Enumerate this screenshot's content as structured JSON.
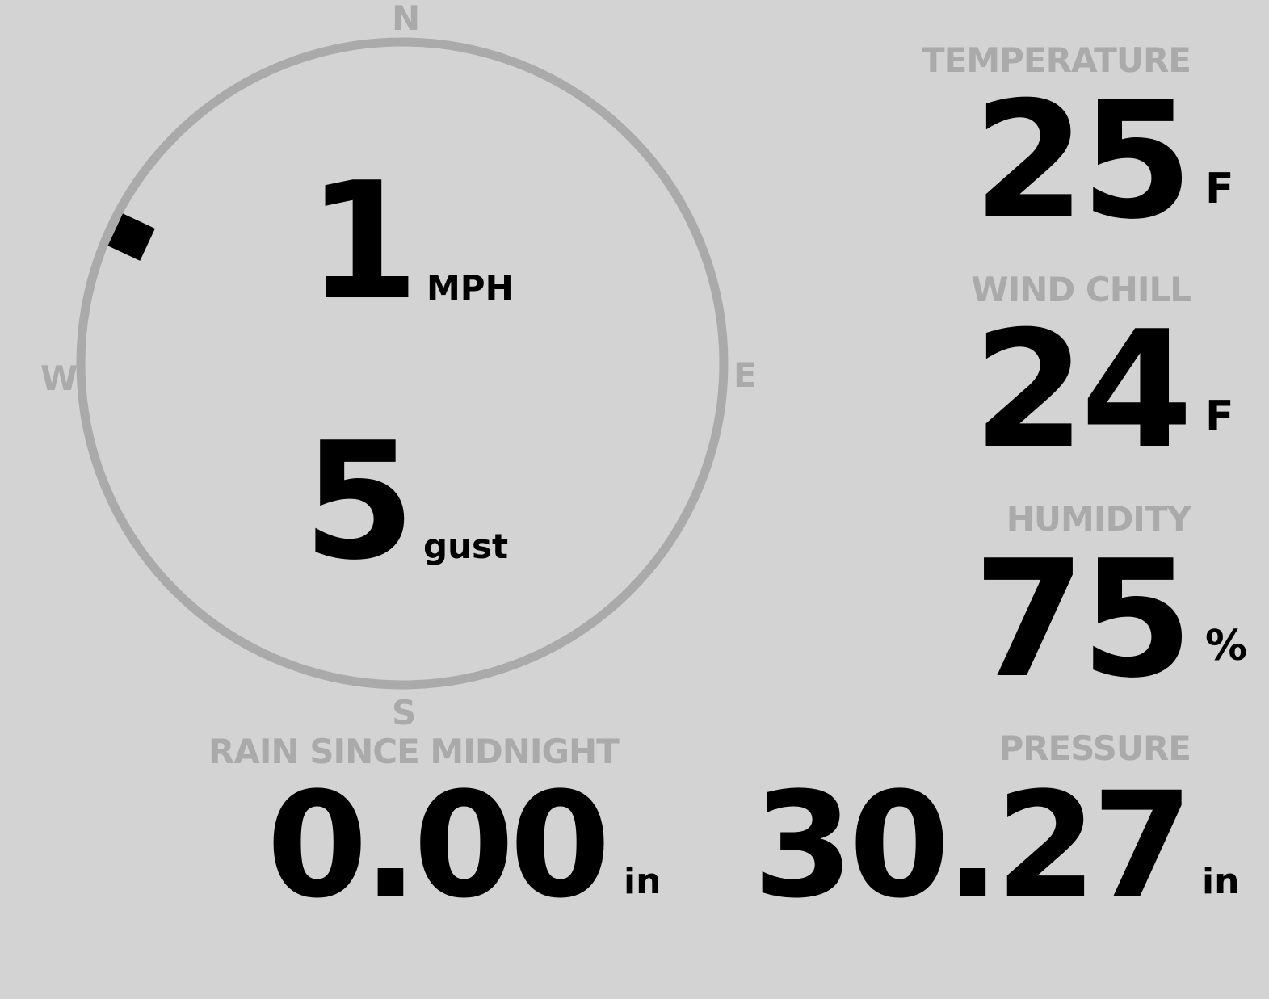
{
  "colors": {
    "background": "#d3d3d3",
    "label": "#aaaaaa",
    "value": "#000000"
  },
  "compass": {
    "north": "N",
    "south": "S",
    "east": "E",
    "west": "W",
    "wind_direction_deg": 295,
    "speed": "1",
    "speed_unit": "MPH",
    "gust": "5",
    "gust_unit": "gust"
  },
  "temperature": {
    "label": "TEMPERATURE",
    "value": "25",
    "unit": "F"
  },
  "wind_chill": {
    "label": "WIND CHILL",
    "value": "24",
    "unit": "F"
  },
  "humidity": {
    "label": "HUMIDITY",
    "value": "75",
    "unit": "%"
  },
  "rain": {
    "label": "RAIN SINCE MIDNIGHT",
    "value": "0.00",
    "unit": "in"
  },
  "pressure": {
    "label": "PRESSURE",
    "value": "30.27",
    "unit": "in"
  }
}
